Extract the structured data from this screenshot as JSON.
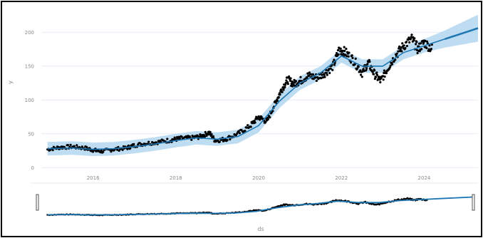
{
  "chart_data": {
    "type": "line",
    "xlabel": "ds",
    "ylabel": "y",
    "x_ticks": [
      "2016",
      "2018",
      "2020",
      "2022",
      "2024"
    ],
    "y_ticks": [
      "0",
      "50",
      "100",
      "150",
      "200"
    ],
    "x_range": [
      2014.75,
      2025.3
    ],
    "y_range": [
      -5,
      215
    ],
    "grid": true,
    "has_range_slider": true,
    "colors": {
      "actual": "#000000",
      "forecast": "#1f77b4",
      "uncertainty": "#a8d1ee",
      "grid": "#e6ecf5",
      "tick_text": "#8a8a8a"
    },
    "series": [
      {
        "role": "actual",
        "marker": "points",
        "x": [
          2014.9,
          2015.2,
          2015.5,
          2015.8,
          2016.0,
          2016.2,
          2016.5,
          2016.8,
          2017.0,
          2017.3,
          2017.6,
          2017.9,
          2018.1,
          2018.4,
          2018.6,
          2018.8,
          2018.95,
          2019.2,
          2019.5,
          2019.8,
          2020.0,
          2020.2,
          2020.4,
          2020.55,
          2020.7,
          2020.85,
          2021.0,
          2021.2,
          2021.4,
          2021.6,
          2021.8,
          2021.95,
          2022.1,
          2022.3,
          2022.5,
          2022.65,
          2022.8,
          2022.95,
          2023.1,
          2023.3,
          2023.5,
          2023.7,
          2023.85,
          2024.0,
          2024.2
        ],
        "values": [
          27,
          30,
          31,
          29,
          26,
          24,
          27,
          29,
          33,
          36,
          38,
          41,
          43,
          44,
          46,
          52,
          40,
          42,
          50,
          62,
          75,
          68,
          95,
          115,
          130,
          124,
          128,
          136,
          133,
          140,
          150,
          175,
          170,
          158,
          140,
          155,
          138,
          128,
          145,
          165,
          180,
          190,
          175,
          185,
          175
        ]
      },
      {
        "role": "forecast",
        "marker": "line",
        "x": [
          2014.9,
          2015.5,
          2016.0,
          2016.5,
          2017.0,
          2017.5,
          2018.0,
          2018.5,
          2019.0,
          2019.5,
          2020.0,
          2020.5,
          2021.0,
          2021.5,
          2022.0,
          2022.5,
          2023.0,
          2023.5,
          2024.0,
          2024.5,
          2025.0,
          2025.3
        ],
        "values": [
          28,
          29,
          27,
          28,
          31,
          35,
          40,
          44,
          42,
          46,
          62,
          98,
          125,
          140,
          165,
          150,
          150,
          170,
          180,
          190,
          200,
          206
        ]
      }
    ]
  }
}
